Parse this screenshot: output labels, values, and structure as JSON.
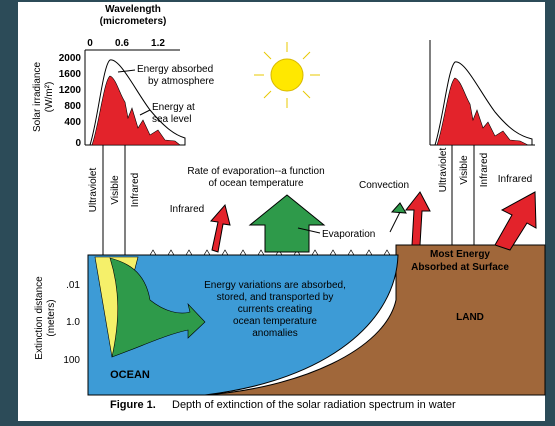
{
  "left_spectrum": {
    "x_label": [
      "Wavelength",
      "(micrometers)"
    ],
    "x_ticks": [
      "0",
      "0.6",
      "1.2"
    ],
    "y_label": [
      "Solar irradiance",
      "(W/m²)"
    ],
    "y_ticks": [
      "2000",
      "1600",
      "1200",
      "800",
      "400",
      "0"
    ],
    "annotations": {
      "absorbed": [
        "Energy absorbed",
        "by atmosphere"
      ],
      "sea_level": [
        "Energy at",
        "sea level"
      ]
    }
  },
  "left_bands": [
    "Ultraviolet",
    "Visible",
    "Infrared"
  ],
  "right_bands": [
    "Ultraviolet",
    "Visible",
    "Infrared"
  ],
  "labels": {
    "evaporation_rate": [
      "Rate of evaporation--a function",
      "of ocean temperature"
    ],
    "convection": "Convection",
    "infrared_left": "Infrared",
    "infrared_right": "Infrared",
    "evaporation": "Evaporation",
    "most_energy": [
      "Most Energy",
      "Absorbed at Surface"
    ],
    "ocean_text": [
      "Energy variations are absorbed,",
      "stored, and transported by",
      "currents creating",
      "ocean temperature",
      "anomalies"
    ],
    "land": "LAND",
    "ocean": "OCEAN"
  },
  "depth_axis": {
    "label": [
      "Extinction distance",
      "(meters)"
    ],
    "ticks": [
      ".01",
      "1.0",
      "100"
    ]
  },
  "caption": {
    "figure": "Figure 1.",
    "text": "Depth of extinction of the solar radiation spectrum in water"
  }
}
